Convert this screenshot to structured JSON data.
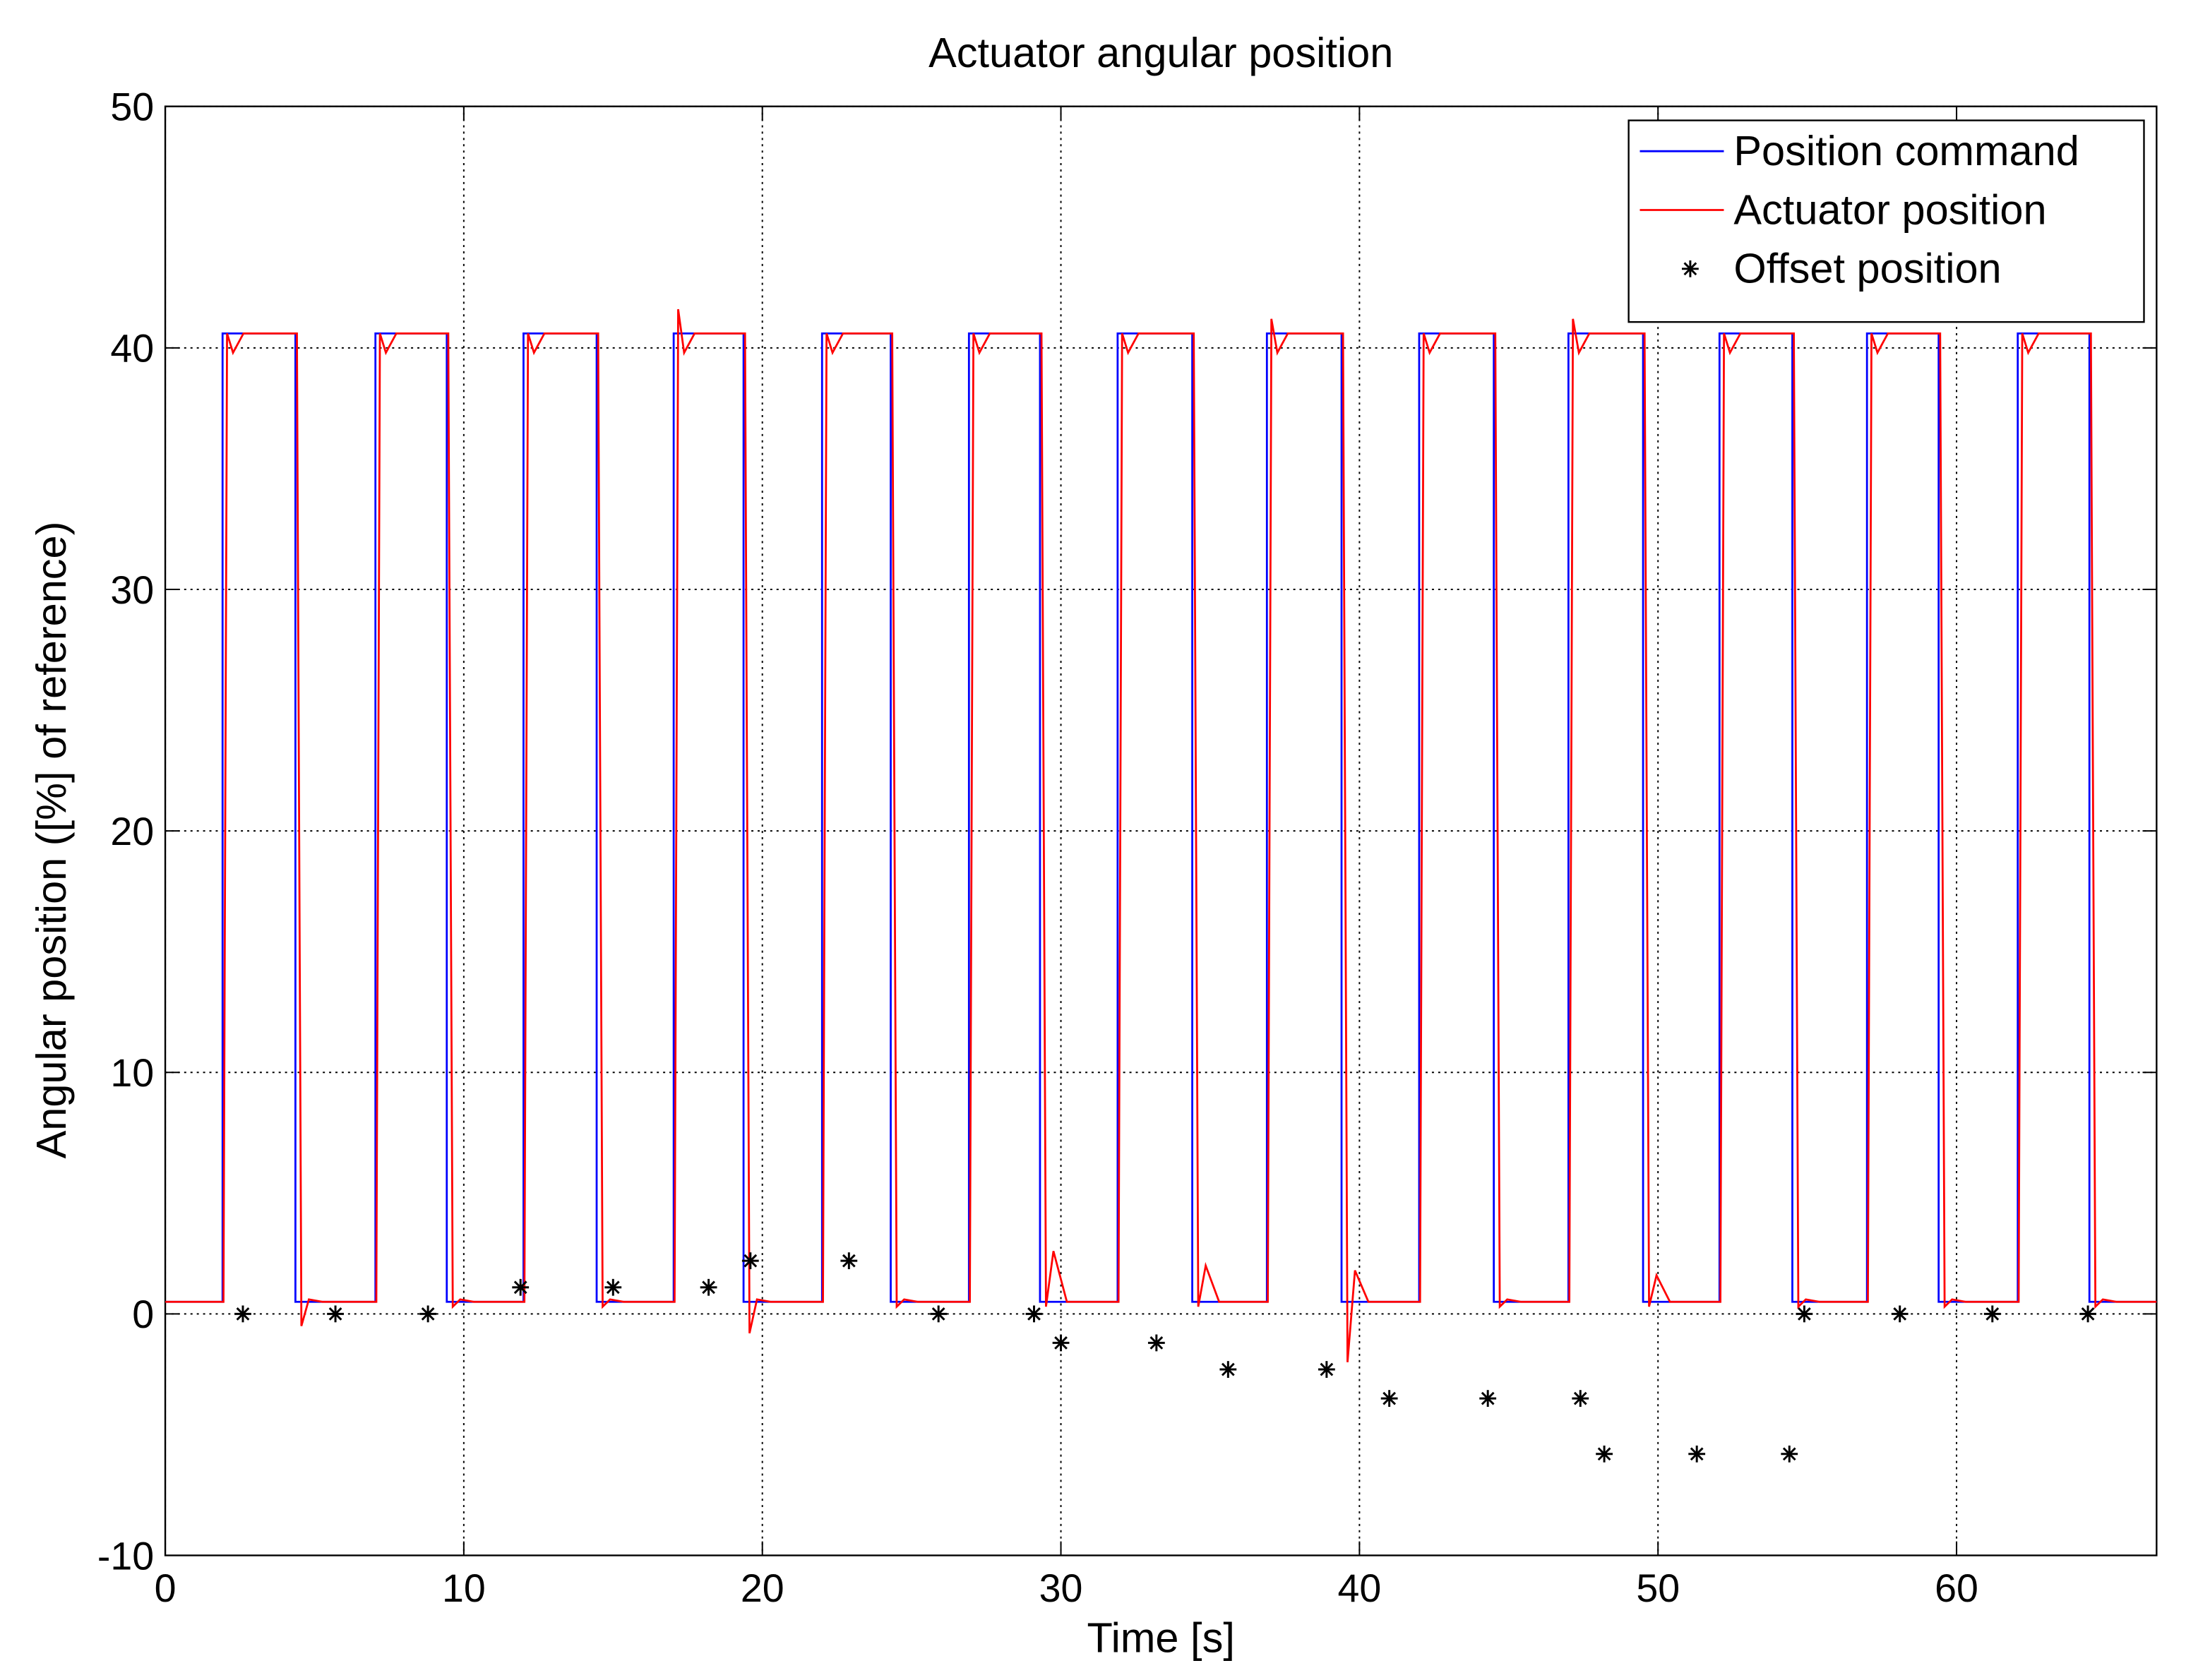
{
  "chart_data": {
    "type": "line",
    "title": "Actuator angular position",
    "x_label": "Time [s]",
    "y_label": "Angular position ([%] of reference)",
    "xlim": [
      0,
      66.7
    ],
    "ylim": [
      -10,
      50
    ],
    "xticks": [
      0,
      10,
      20,
      30,
      40,
      50,
      60
    ],
    "yticks": [
      -10,
      0,
      10,
      20,
      30,
      40,
      50
    ],
    "grid": true,
    "legend": "upper right",
    "series": [
      {
        "name": "Position command",
        "color": "#0000ff",
        "mark": "line",
        "x": [
          0,
          1.92,
          1.92,
          4.36,
          4.36,
          7.04,
          7.04,
          9.43,
          9.43,
          12.0,
          12.0,
          14.45,
          14.45,
          17.03,
          17.03,
          19.37,
          19.37,
          22.0,
          22.0,
          24.3,
          24.3,
          26.92,
          26.92,
          29.3,
          29.3,
          31.9,
          31.9,
          34.4,
          34.4,
          36.9,
          36.9,
          39.4,
          39.4,
          42.0,
          42.0,
          44.5,
          44.5,
          47.0,
          47.0,
          49.5,
          49.5,
          52.06,
          52.06,
          54.5,
          54.5,
          57.0,
          57.0,
          59.4,
          59.4,
          62.05,
          62.05,
          64.45,
          64.45,
          66.7
        ],
        "values": [
          0.5,
          0.5,
          40.6,
          40.6,
          0.5,
          0.5,
          40.6,
          40.6,
          0.5,
          0.5,
          40.6,
          40.6,
          0.5,
          0.5,
          40.6,
          40.6,
          0.5,
          0.5,
          40.6,
          40.6,
          0.5,
          0.5,
          40.6,
          40.6,
          0.5,
          0.5,
          40.6,
          40.6,
          0.5,
          0.5,
          40.6,
          40.6,
          0.5,
          0.5,
          40.6,
          40.6,
          0.5,
          0.5,
          40.6,
          40.6,
          0.5,
          0.5,
          40.6,
          40.6,
          0.5,
          0.5,
          40.6,
          40.6,
          0.5,
          0.5,
          40.6,
          40.6,
          0.5,
          0.5
        ]
      },
      {
        "name": "Actuator position",
        "color": "#ff0000",
        "mark": "line",
        "x": [
          0,
          1.95,
          2.07,
          2.27,
          2.62,
          4.41,
          4.56,
          4.81,
          5.26,
          7.07,
          7.19,
          7.39,
          7.74,
          9.48,
          9.63,
          9.88,
          10.33,
          12.03,
          12.15,
          12.35,
          12.7,
          14.5,
          14.65,
          14.9,
          15.35,
          17.06,
          17.18,
          17.38,
          17.73,
          19.42,
          19.57,
          19.82,
          20.27,
          22.03,
          22.15,
          22.35,
          22.7,
          24.35,
          24.5,
          24.75,
          25.2,
          26.95,
          27.07,
          27.27,
          27.62,
          29.35,
          29.5,
          29.75,
          30.2,
          31.93,
          32.05,
          32.25,
          32.6,
          34.45,
          34.6,
          34.85,
          35.3,
          36.93,
          37.05,
          37.25,
          37.6,
          39.45,
          39.6,
          39.85,
          40.3,
          42.03,
          42.15,
          42.35,
          42.7,
          44.55,
          44.7,
          44.95,
          45.4,
          47.03,
          47.15,
          47.35,
          47.7,
          49.55,
          49.7,
          49.95,
          50.4,
          52.09,
          52.21,
          52.41,
          52.76,
          54.55,
          54.7,
          54.95,
          55.4,
          57.03,
          57.15,
          57.35,
          57.7,
          59.45,
          59.6,
          59.85,
          60.3,
          62.08,
          62.2,
          62.4,
          62.75,
          64.5,
          64.65,
          64.9,
          65.35,
          66.7
        ],
        "values": [
          0.5,
          0.5,
          40.6,
          39.8,
          40.6,
          40.6,
          -0.5,
          0.6,
          0.5,
          0.5,
          40.6,
          39.8,
          40.6,
          40.6,
          0.3,
          0.6,
          0.5,
          0.5,
          40.6,
          39.8,
          40.6,
          40.6,
          0.3,
          0.6,
          0.5,
          0.5,
          41.6,
          39.8,
          40.6,
          40.6,
          -0.8,
          0.6,
          0.5,
          0.5,
          40.6,
          39.8,
          40.6,
          40.6,
          0.3,
          0.6,
          0.5,
          0.5,
          40.6,
          39.8,
          40.6,
          40.6,
          0.3,
          2.6,
          0.5,
          0.5,
          40.6,
          39.8,
          40.6,
          40.6,
          0.3,
          2.0,
          0.5,
          0.5,
          41.2,
          39.8,
          40.6,
          40.6,
          -2.0,
          1.8,
          0.5,
          0.5,
          40.6,
          39.8,
          40.6,
          40.6,
          0.3,
          0.6,
          0.5,
          0.5,
          41.2,
          39.8,
          40.6,
          40.6,
          0.3,
          1.6,
          0.5,
          0.5,
          40.6,
          39.8,
          40.6,
          40.6,
          0.3,
          0.6,
          0.5,
          0.5,
          40.6,
          39.8,
          40.6,
          40.6,
          0.3,
          0.6,
          0.5,
          0.5,
          40.6,
          39.8,
          40.6,
          40.6,
          0.3,
          0.6,
          0.5,
          0.5
        ]
      },
      {
        "name": "Offset position",
        "color": "#000000",
        "mark": "asterisk",
        "x": [
          2.6,
          5.7,
          8.8,
          11.9,
          15.0,
          18.2,
          19.6,
          22.9,
          25.9,
          29.1,
          30.0,
          33.2,
          35.6,
          38.9,
          41.0,
          44.3,
          47.4,
          48.2,
          51.3,
          54.4,
          54.9,
          58.1,
          61.2,
          64.4
        ],
        "values": [
          0,
          0,
          0,
          1.1,
          1.1,
          1.1,
          2.2,
          2.2,
          0,
          0,
          -1.2,
          -1.2,
          -2.3,
          -2.3,
          -3.5,
          -3.5,
          -3.5,
          -5.8,
          -5.8,
          -5.8,
          0,
          0,
          0,
          0
        ]
      }
    ]
  }
}
